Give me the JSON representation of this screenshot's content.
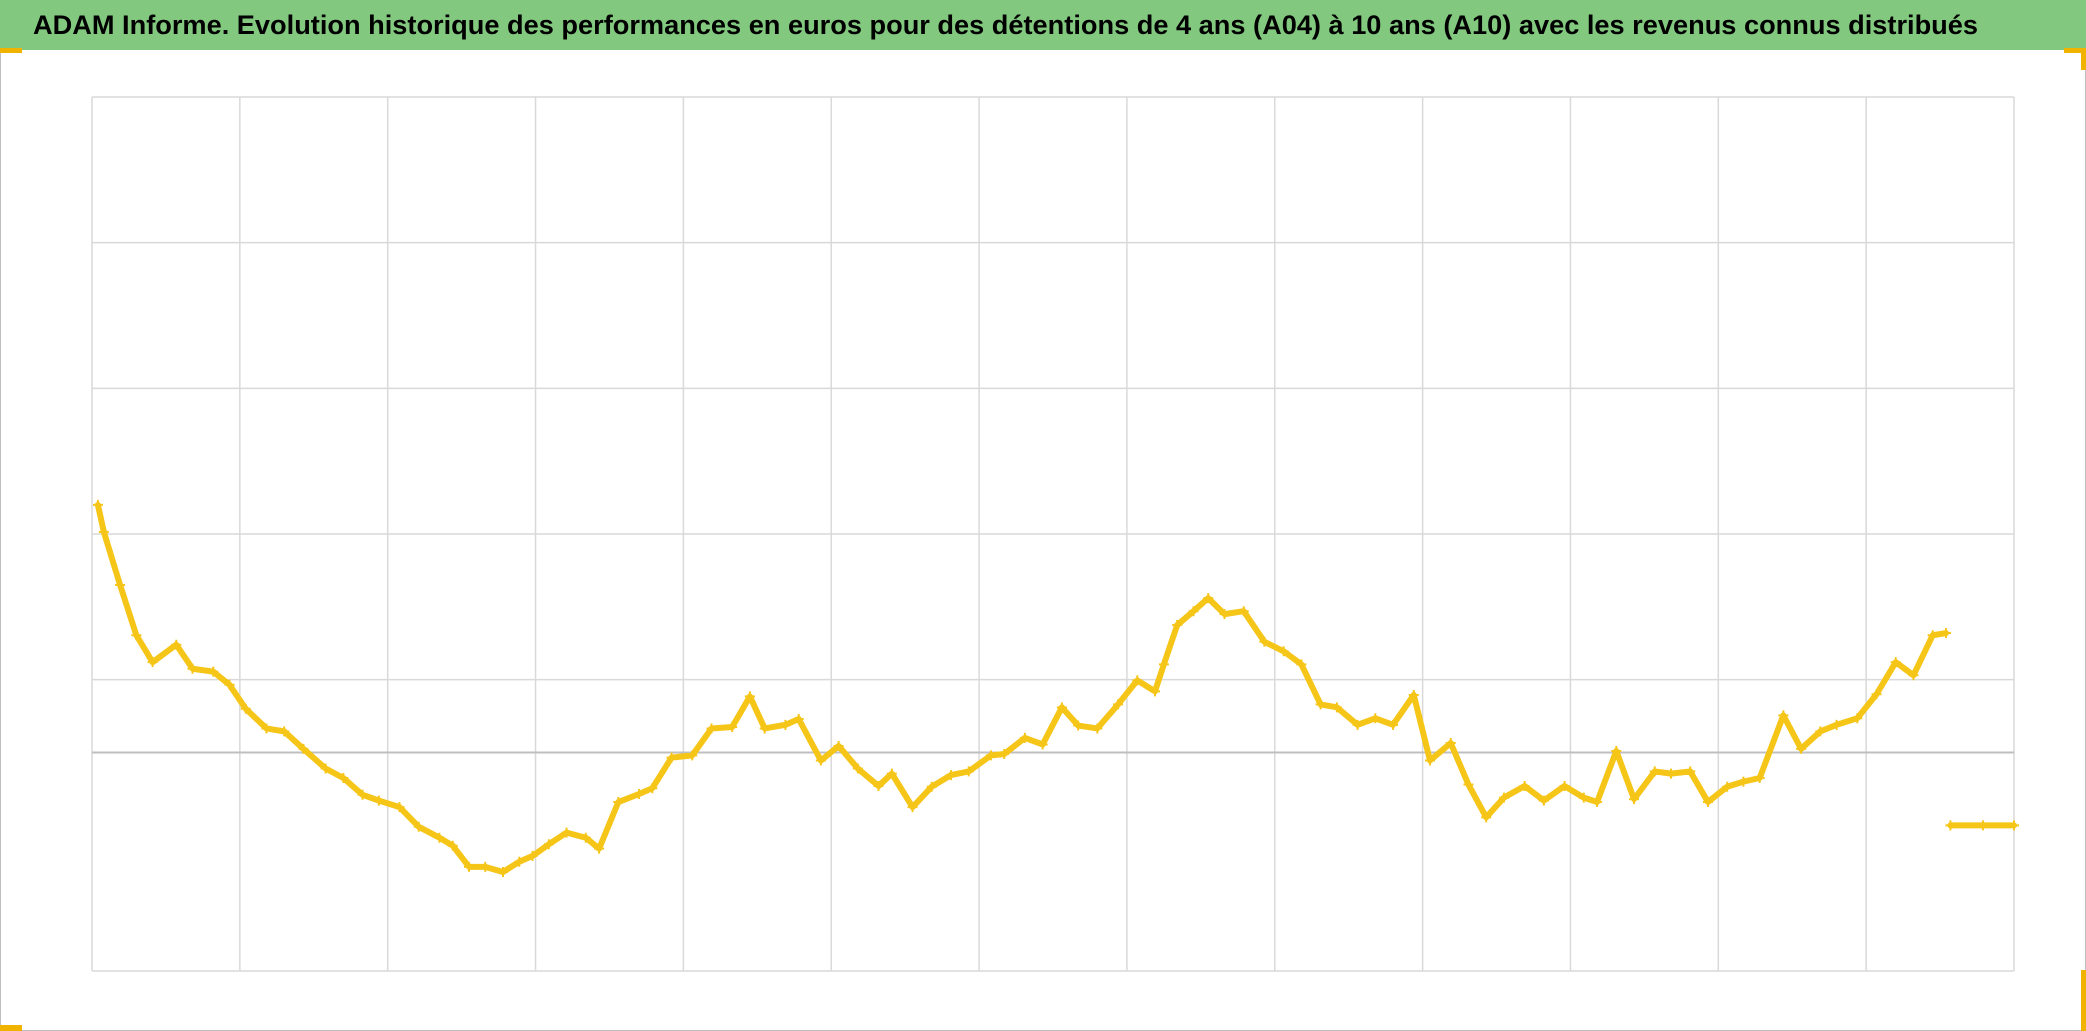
{
  "chart_data": {
    "type": "line",
    "title": "ADAM Informe. Evolution historique des performances en euros pour des détentions de 4 ans (A04) à 10 ans (A10) avec les revenus connus distribués",
    "xlim": [
      0,
      13
    ],
    "xticks": [
      0,
      1,
      2,
      3,
      4,
      5,
      6,
      7,
      8,
      9,
      10,
      11,
      12,
      13
    ],
    "ylim": [
      -30,
      90
    ],
    "yticks": [
      -30,
      10,
      30,
      50,
      70,
      90
    ],
    "grid": true,
    "markers": "+",
    "color": "#f5c518",
    "x": [
      0.04,
      0.08,
      0.19,
      0.3,
      0.41,
      0.57,
      0.68,
      0.82,
      0.93,
      1.04,
      1.18,
      1.3,
      1.43,
      1.58,
      1.7,
      1.83,
      1.94,
      2.08,
      2.21,
      2.35,
      2.44,
      2.55,
      2.66,
      2.78,
      2.89,
      2.98,
      3.09,
      3.21,
      3.34,
      3.43,
      3.56,
      3.7,
      3.79,
      3.92,
      4.06,
      4.19,
      4.33,
      4.45,
      4.55,
      4.69,
      4.78,
      4.93,
      5.05,
      5.18,
      5.32,
      5.41,
      5.55,
      5.68,
      5.81,
      5.93,
      6.08,
      6.17,
      6.31,
      6.43,
      6.56,
      6.67,
      6.8,
      6.94,
      7.07,
      7.19,
      7.25,
      7.34,
      7.45,
      7.55,
      7.66,
      7.79,
      7.93,
      8.06,
      8.18,
      8.31,
      8.42,
      8.56,
      8.68,
      8.8,
      8.94,
      9.05,
      9.19,
      9.31,
      9.43,
      9.55,
      9.69,
      9.82,
      9.96,
      10.09,
      10.18,
      10.31,
      10.43,
      10.57,
      10.68,
      10.81,
      10.93,
      11.06,
      11.17,
      11.28,
      11.44,
      11.56,
      11.69,
      11.8,
      11.94,
      12.07,
      12.2,
      12.32,
      12.45,
      12.54,
      12.56,
      12.57,
      12.79,
      13.0
    ],
    "values": [
      34.0,
      30.3,
      23.0,
      16.1,
      12.4,
      14.8,
      11.5,
      11.1,
      9.3,
      6.0,
      3.3,
      2.9,
      0.5,
      -2.2,
      -3.5,
      -5.8,
      -6.6,
      -7.5,
      -10.2,
      -11.7,
      -12.8,
      -15.7,
      -15.7,
      -16.4,
      -15.0,
      -14.2,
      -12.6,
      -11.0,
      -11.7,
      -13.2,
      -6.8,
      -5.7,
      -4.9,
      -0.7,
      -0.4,
      3.3,
      3.5,
      7.7,
      3.3,
      3.8,
      4.6,
      -1.1,
      0.9,
      -2.2,
      -4.6,
      -2.9,
      -7.5,
      -4.7,
      -3.1,
      -2.6,
      -0.4,
      -0.2,
      2.0,
      1.1,
      6.2,
      3.7,
      3.3,
      6.6,
      9.9,
      8.4,
      12.1,
      17.5,
      19.4,
      21.2,
      19.0,
      19.4,
      15.2,
      13.9,
      12.1,
      6.6,
      6.2,
      3.8,
      4.7,
      3.8,
      7.9,
      -1.1,
      1.3,
      -4.4,
      -8.9,
      -6.2,
      -4.6,
      -6.6,
      -4.6,
      -6.2,
      -6.8,
      0.2,
      -6.4,
      -2.6,
      -2.9,
      -2.6,
      -6.8,
      -4.7,
      -4.0,
      -3.5,
      5.1,
      0.5,
      2.9,
      3.8,
      4.7,
      8.0,
      12.4,
      10.6,
      16.1,
      16.4,
      null,
      -10.0,
      -10.0,
      -10.0
    ]
  }
}
